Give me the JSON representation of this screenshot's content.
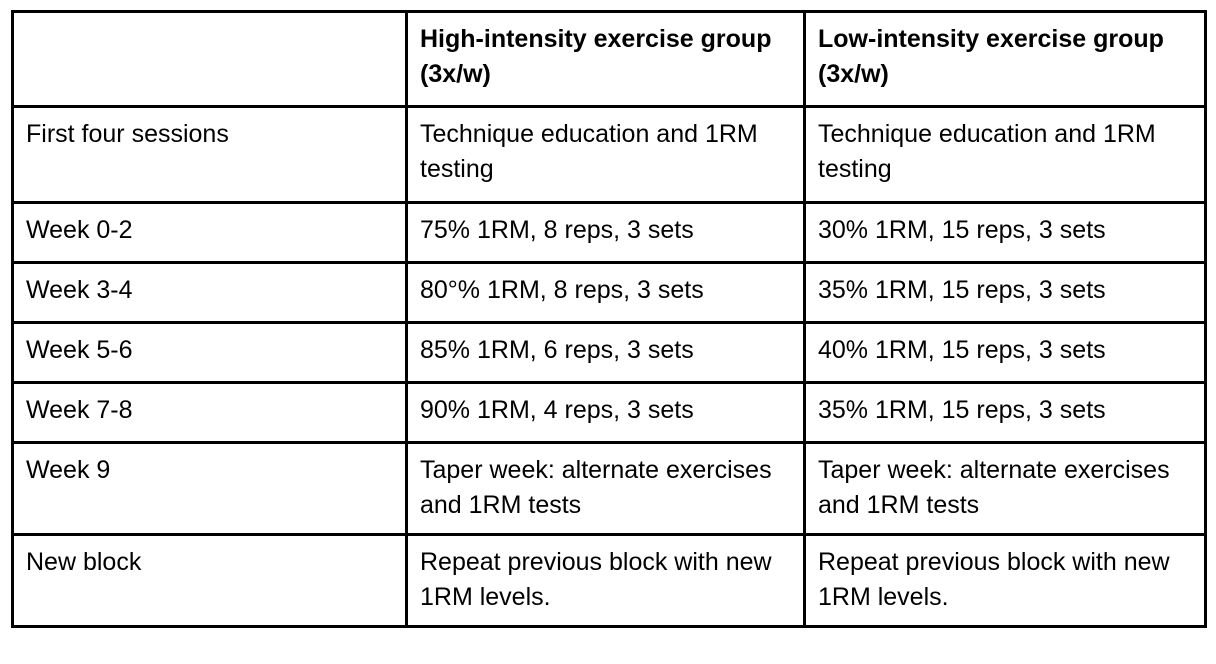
{
  "colors": {
    "background": "#ffffff",
    "border": "#000000",
    "text": "#000000"
  },
  "table": {
    "corner": "",
    "columns": [
      "High-intensity exercise group (3x/w)",
      "Low-intensity exercise group (3x/w)"
    ],
    "rows": [
      {
        "label": "First four sessions",
        "high": "Technique education and 1RM testing",
        "low": "Technique education and 1RM testing"
      },
      {
        "label": "Week 0-2",
        "high": "75% 1RM, 8 reps, 3 sets",
        "low": "30% 1RM, 15 reps, 3 sets"
      },
      {
        "label": "Week 3-4",
        "high": "80°% 1RM, 8 reps, 3 sets",
        "low": "35% 1RM, 15 reps, 3 sets"
      },
      {
        "label": "Week 5-6",
        "high": "85% 1RM, 6 reps, 3 sets",
        "low": "40% 1RM, 15 reps, 3 sets"
      },
      {
        "label": "Week 7-8",
        "high": "90% 1RM, 4 reps, 3 sets",
        "low": "35% 1RM, 15 reps, 3 sets"
      },
      {
        "label": "Week 9",
        "high": "Taper week: alternate exercises and 1RM tests",
        "low": "Taper week: alternate exercises and 1RM tests"
      },
      {
        "label": "New block",
        "high": "Repeat previous block with new 1RM levels.",
        "low": "Repeat previous block with new 1RM levels."
      }
    ]
  }
}
